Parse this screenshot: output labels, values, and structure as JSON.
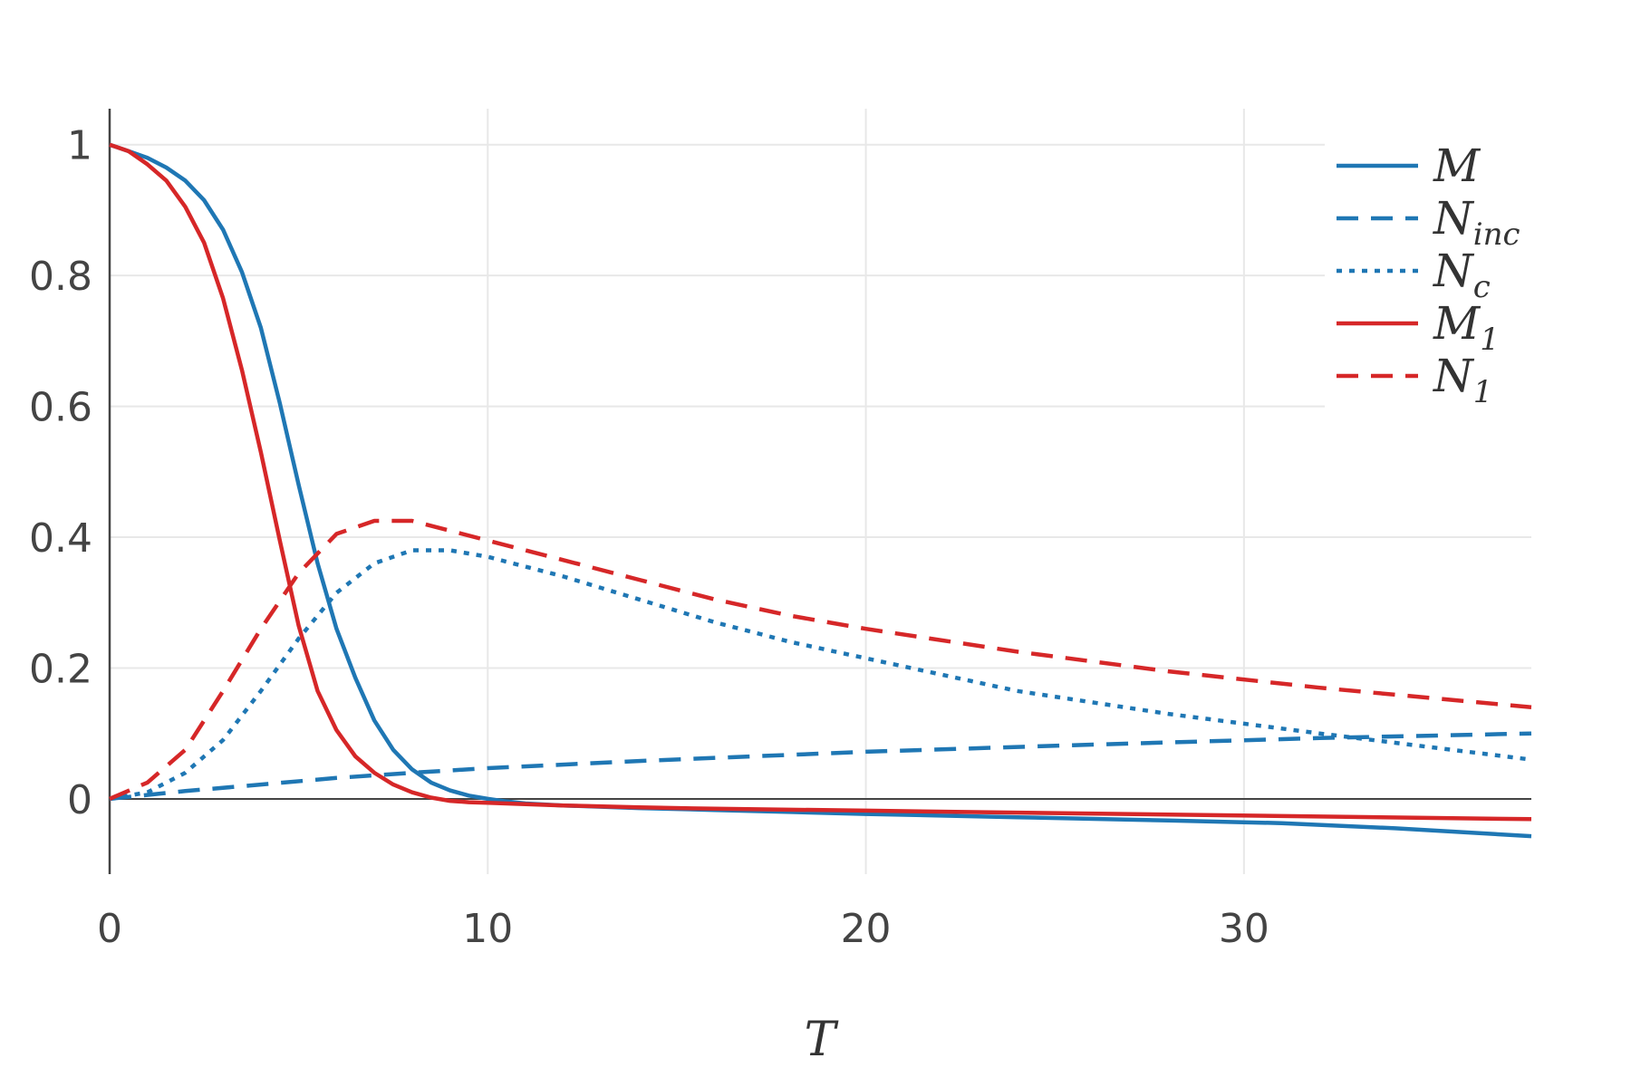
{
  "chart_data": {
    "type": "line",
    "title": "",
    "xlabel": "T",
    "ylabel": "",
    "xlim": [
      0,
      37.6
    ],
    "ylim": [
      -0.115,
      1.055
    ],
    "x_ticks": [
      0,
      10,
      20,
      30
    ],
    "x_tick_labels": [
      "0",
      "10",
      "20",
      "30"
    ],
    "y_ticks": [
      0,
      0.2,
      0.4,
      0.6,
      0.8,
      1
    ],
    "y_tick_labels": [
      "0",
      "0.2",
      "0.4",
      "0.6",
      "0.8",
      "1"
    ],
    "grid": true,
    "legend_position": "top-right",
    "colors": {
      "blue": "#1f77b4",
      "red": "#d62728",
      "grid": "#e8e8e8",
      "axis": "#444444",
      "zeroline": "#444444"
    },
    "series": [
      {
        "name": "M",
        "name_sub": "",
        "color": "#1f77b4",
        "dash": "solid",
        "x": [
          0,
          0.5,
          1,
          1.5,
          2,
          2.5,
          3,
          3.5,
          4,
          4.5,
          5,
          5.5,
          6,
          6.5,
          7,
          7.5,
          8,
          8.5,
          9,
          9.5,
          10,
          10.5,
          11,
          12,
          14,
          16,
          18,
          20,
          24,
          28,
          31,
          34,
          37.6
        ],
        "values": [
          1.0,
          0.99,
          0.98,
          0.965,
          0.945,
          0.915,
          0.87,
          0.805,
          0.72,
          0.605,
          0.48,
          0.36,
          0.26,
          0.185,
          0.12,
          0.075,
          0.045,
          0.025,
          0.013,
          0.005,
          0.0,
          -0.004,
          -0.007,
          -0.01,
          -0.014,
          -0.017,
          -0.02,
          -0.023,
          -0.028,
          -0.033,
          -0.037,
          -0.045,
          -0.057
        ]
      },
      {
        "name": "N",
        "name_sub": "inc",
        "color": "#1f77b4",
        "dash": "dashed",
        "x": [
          0,
          2,
          4,
          6,
          8,
          10,
          14,
          20,
          26,
          32,
          37.6
        ],
        "values": [
          0.0,
          0.012,
          0.022,
          0.032,
          0.04,
          0.047,
          0.058,
          0.072,
          0.083,
          0.093,
          0.1
        ]
      },
      {
        "name": "N",
        "name_sub": "c",
        "color": "#1f77b4",
        "dash": "dotted",
        "x": [
          0,
          1,
          2,
          3,
          4,
          5,
          6,
          7,
          8,
          9,
          10,
          12,
          14,
          16,
          18,
          20,
          24,
          28,
          32,
          37.6
        ],
        "values": [
          0.0,
          0.01,
          0.04,
          0.09,
          0.165,
          0.245,
          0.315,
          0.36,
          0.38,
          0.38,
          0.37,
          0.34,
          0.305,
          0.27,
          0.24,
          0.215,
          0.165,
          0.13,
          0.1,
          0.06
        ]
      },
      {
        "name": "M",
        "name_sub": "1",
        "color": "#d62728",
        "dash": "solid",
        "x": [
          0,
          0.5,
          1,
          1.5,
          2,
          2.5,
          3,
          3.5,
          4,
          4.5,
          5,
          5.5,
          6,
          6.5,
          7,
          7.5,
          8,
          8.5,
          9,
          9.5,
          10,
          11,
          12,
          14,
          16,
          20,
          24,
          28,
          32,
          37.6
        ],
        "values": [
          1.0,
          0.99,
          0.97,
          0.945,
          0.905,
          0.85,
          0.765,
          0.655,
          0.53,
          0.395,
          0.265,
          0.165,
          0.105,
          0.065,
          0.04,
          0.022,
          0.01,
          0.002,
          -0.003,
          -0.005,
          -0.006,
          -0.008,
          -0.01,
          -0.013,
          -0.015,
          -0.018,
          -0.021,
          -0.024,
          -0.027,
          -0.031
        ]
      },
      {
        "name": "N",
        "name_sub": "1",
        "color": "#d62728",
        "dash": "dashed",
        "x": [
          0,
          1,
          2,
          3,
          4,
          5,
          6,
          7,
          8,
          9,
          10,
          12,
          14,
          16,
          18,
          20,
          24,
          28,
          32,
          37.6
        ],
        "values": [
          0.0,
          0.025,
          0.075,
          0.165,
          0.26,
          0.345,
          0.405,
          0.425,
          0.425,
          0.41,
          0.395,
          0.365,
          0.335,
          0.305,
          0.28,
          0.26,
          0.225,
          0.195,
          0.17,
          0.14
        ]
      }
    ]
  }
}
